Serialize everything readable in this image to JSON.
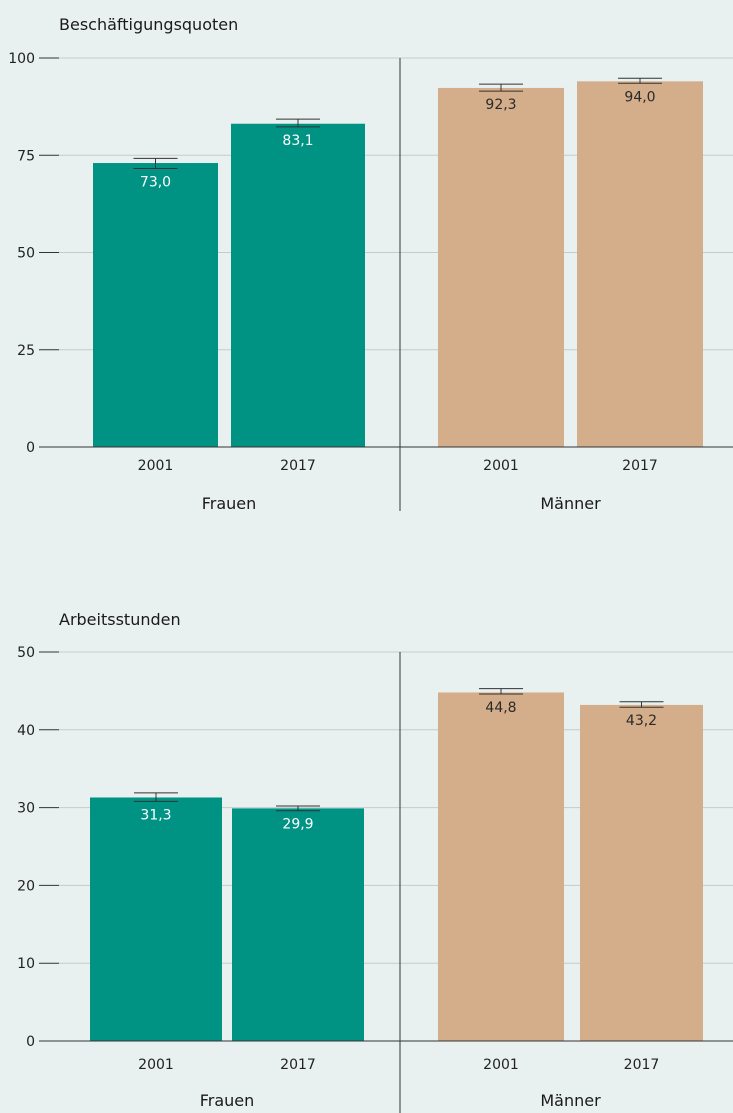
{
  "chart_data": [
    {
      "type": "bar",
      "title": "Beschäftigungsquoten",
      "ylim": [
        0,
        100
      ],
      "yticks": [
        0,
        25,
        50,
        75,
        100
      ],
      "grid": true,
      "groups": [
        {
          "label": "Frauen",
          "color": "#009384",
          "bars": [
            {
              "category": "2001",
              "value": 73.0,
              "value_label": "73,0",
              "err_low": 71.6,
              "err_high": 74.2
            },
            {
              "category": "2017",
              "value": 83.1,
              "value_label": "83,1",
              "err_low": 82.3,
              "err_high": 84.3
            }
          ]
        },
        {
          "label": "Männer",
          "color": "#d4ae8a",
          "bars": [
            {
              "category": "2001",
              "value": 92.3,
              "value_label": "92,3",
              "err_low": 91.5,
              "err_high": 93.3
            },
            {
              "category": "2017",
              "value": 94.0,
              "value_label": "94,0",
              "err_low": 93.5,
              "err_high": 94.8
            }
          ]
        }
      ]
    },
    {
      "type": "bar",
      "title": "Arbeitsstunden",
      "ylim": [
        0,
        50
      ],
      "yticks": [
        0,
        10,
        20,
        30,
        40,
        50
      ],
      "grid": true,
      "groups": [
        {
          "label": "Frauen",
          "color": "#009384",
          "bars": [
            {
              "category": "2001",
              "value": 31.3,
              "value_label": "31,3",
              "err_low": 30.8,
              "err_high": 31.9
            },
            {
              "category": "2017",
              "value": 29.9,
              "value_label": "29,9",
              "err_low": 29.6,
              "err_high": 30.2
            }
          ]
        },
        {
          "label": "Männer",
          "color": "#d4ae8a",
          "bars": [
            {
              "category": "2001",
              "value": 44.8,
              "value_label": "44,8",
              "err_low": 44.6,
              "err_high": 45.3
            },
            {
              "category": "2017",
              "value": 43.2,
              "value_label": "43,2",
              "err_low": 42.9,
              "err_high": 43.6
            }
          ]
        }
      ]
    }
  ]
}
